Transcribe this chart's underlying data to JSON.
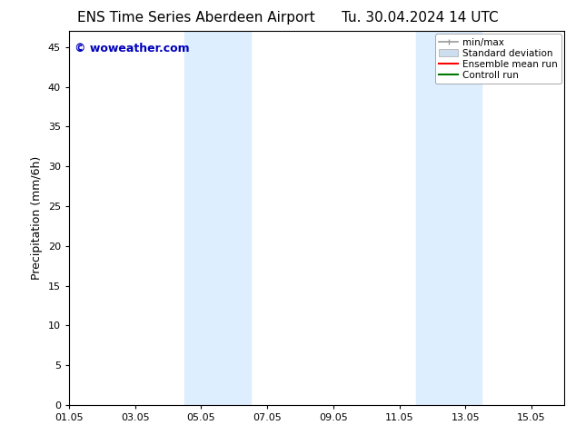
{
  "title_left": "ENS Time Series Aberdeen Airport",
  "title_right": "Tu. 30.04.2024 14 UTC",
  "ylabel": "Precipitation (mm/6h)",
  "xlim": [
    0,
    15
  ],
  "ylim": [
    0,
    47
  ],
  "yticks": [
    0,
    5,
    10,
    15,
    20,
    25,
    30,
    35,
    40,
    45
  ],
  "xtick_labels": [
    "01.05",
    "03.05",
    "05.05",
    "07.05",
    "09.05",
    "11.05",
    "13.05",
    "15.05"
  ],
  "xtick_positions": [
    0,
    2,
    4,
    6,
    8,
    10,
    12,
    14
  ],
  "bg_color": "#ffffff",
  "plot_bg_color": "#ffffff",
  "shaded_regions": [
    {
      "x_start": 3.5,
      "x_end": 5.5,
      "color": "#ddeeff"
    },
    {
      "x_start": 10.5,
      "x_end": 12.5,
      "color": "#ddeeff"
    }
  ],
  "watermark_text": "© woweather.com",
  "watermark_color": "#0000bb",
  "watermark_fontsize": 9,
  "legend_items": [
    {
      "label": "min/max",
      "color": "#999999",
      "lw": 1.2,
      "ls": "-",
      "type": "line_with_caps"
    },
    {
      "label": "Standard deviation",
      "color": "#ccddee",
      "lw": 5,
      "ls": "-",
      "type": "patch"
    },
    {
      "label": "Ensemble mean run",
      "color": "#ff0000",
      "lw": 1.5,
      "ls": "-",
      "type": "line"
    },
    {
      "label": "Controll run",
      "color": "#007700",
      "lw": 1.5,
      "ls": "-",
      "type": "line"
    }
  ],
  "title_fontsize": 11,
  "axis_label_fontsize": 9,
  "tick_fontsize": 8,
  "legend_fontsize": 7.5
}
